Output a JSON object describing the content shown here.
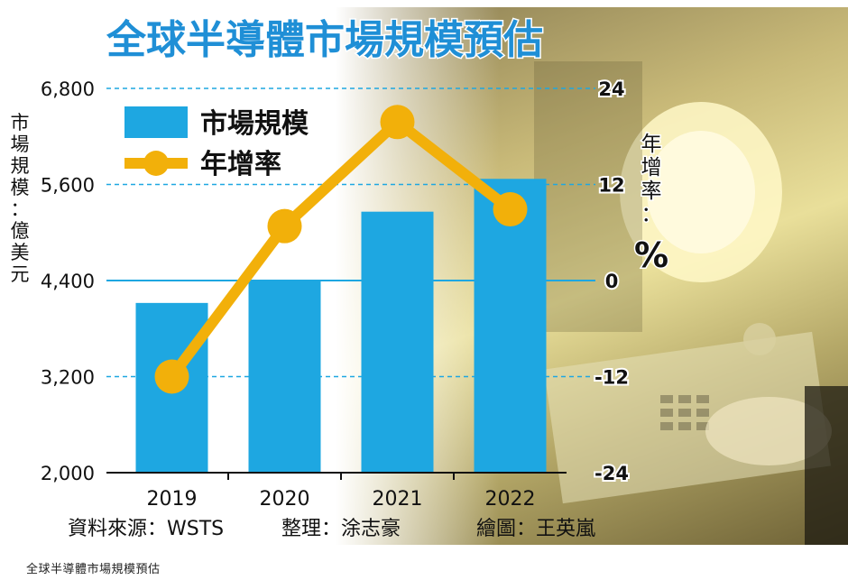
{
  "caption": "全球半導體市場規模預估",
  "chart_data": {
    "type": "bar",
    "title": "全球半導體市場規模預估",
    "categories": [
      "2019",
      "2020",
      "2021",
      "2022"
    ],
    "series": [
      {
        "name": "市場規模",
        "type": "bar",
        "axis": "left",
        "color": "#1ea7e1",
        "values": [
          4120,
          4400,
          5260,
          5670
        ]
      },
      {
        "name": "年增率",
        "type": "line",
        "axis": "right",
        "color": "#f2b00a",
        "values": [
          -12,
          6.8,
          19.8,
          8.9
        ]
      }
    ],
    "ylabel": "市場規模：億美元",
    "ylabel_right": "年增率：%",
    "ylim": [
      2000,
      6800
    ],
    "yticks": [
      "2,000",
      "3,200",
      "4,400",
      "5,600",
      "6,800"
    ],
    "ylim_right": [
      -24,
      24
    ],
    "yticks_right": [
      "-24",
      "-12",
      "0",
      "12",
      "24"
    ],
    "legend_position": "top-left",
    "grid": "dashed horizontal at ticks",
    "footer": {
      "source": "資料來源：WSTS",
      "editor": "整理：涂志豪",
      "illustrator": "繪圖：王英嵐"
    }
  }
}
